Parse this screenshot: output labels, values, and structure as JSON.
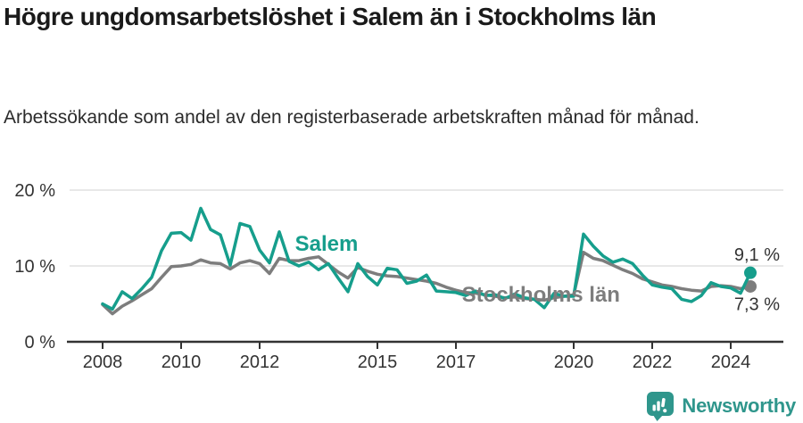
{
  "header": {
    "title": "Högre ungdomsarbetslöshet i Salem än i Stockholms län",
    "subtitle": "Arbetssökande som andel av den registerbaserade arbetskraften månad för månad."
  },
  "chart_data": {
    "type": "line",
    "title": "Högre ungdomsarbetslöshet i Salem än i Stockholms län",
    "xlabel": "",
    "ylabel": "Arbetssökande som andel av den registerbaserade arbetskraften (%)",
    "grid": "horizontal",
    "legend_position": "inline-annotations",
    "x_range": [
      2007.1,
      2025.4
    ],
    "ylim": [
      0,
      21
    ],
    "y_ticks": [
      {
        "value": 0,
        "label": "0 %"
      },
      {
        "value": 10,
        "label": "10 %"
      },
      {
        "value": 20,
        "label": "20 %"
      }
    ],
    "x_ticks": [
      {
        "value": 2008,
        "label": "2008"
      },
      {
        "value": 2010,
        "label": "2010"
      },
      {
        "value": 2012,
        "label": "2012"
      },
      {
        "value": 2015,
        "label": "2015"
      },
      {
        "value": 2017,
        "label": "2017"
      },
      {
        "value": 2020,
        "label": "2020"
      },
      {
        "value": 2022,
        "label": "2022"
      },
      {
        "value": 2024,
        "label": "2024"
      }
    ],
    "x": [
      2008.0,
      2008.25,
      2008.5,
      2008.75,
      2009.0,
      2009.25,
      2009.5,
      2009.75,
      2010.0,
      2010.25,
      2010.5,
      2010.75,
      2011.0,
      2011.25,
      2011.5,
      2011.75,
      2012.0,
      2012.25,
      2012.5,
      2012.75,
      2013.0,
      2013.25,
      2013.5,
      2013.75,
      2014.0,
      2014.25,
      2014.5,
      2014.75,
      2015.0,
      2015.25,
      2015.5,
      2015.75,
      2016.0,
      2016.25,
      2016.5,
      2016.75,
      2017.0,
      2017.25,
      2017.5,
      2017.75,
      2018.0,
      2018.25,
      2018.5,
      2018.75,
      2019.0,
      2019.25,
      2019.5,
      2019.75,
      2020.0,
      2020.25,
      2020.5,
      2020.75,
      2021.0,
      2021.25,
      2021.5,
      2021.75,
      2022.0,
      2022.25,
      2022.5,
      2022.75,
      2023.0,
      2023.25,
      2023.5,
      2023.75,
      2024.0,
      2024.25,
      2024.5
    ],
    "series": [
      {
        "name": "Stockholms län",
        "color": "#7d7d7d",
        "end_value_label": "7,3 %",
        "values": [
          4.9,
          3.7,
          4.7,
          5.4,
          6.2,
          7.0,
          8.5,
          9.9,
          10.0,
          10.2,
          10.8,
          10.4,
          10.3,
          9.6,
          10.4,
          10.7,
          10.3,
          9.0,
          11.0,
          10.7,
          10.7,
          11.0,
          11.2,
          10.2,
          9.2,
          8.4,
          9.8,
          9.3,
          8.9,
          8.7,
          8.6,
          8.4,
          8.2,
          8.0,
          7.7,
          7.2,
          6.8,
          6.5,
          6.4,
          6.2,
          6.0,
          5.8,
          5.9,
          5.7,
          5.6,
          5.5,
          5.8,
          6.0,
          6.2,
          11.8,
          11.0,
          10.7,
          10.1,
          9.5,
          9.0,
          8.3,
          7.9,
          7.5,
          7.3,
          7.0,
          6.8,
          6.7,
          7.3,
          7.4,
          7.3,
          7.0,
          7.3
        ]
      },
      {
        "name": "Salem",
        "color": "#169e8c",
        "end_value_label": "9,1 %",
        "values": [
          5.0,
          4.3,
          6.6,
          5.7,
          7.0,
          8.5,
          12.0,
          14.3,
          14.4,
          13.4,
          17.6,
          14.8,
          14.1,
          10.1,
          15.6,
          15.2,
          12.1,
          10.4,
          14.5,
          10.6,
          10.0,
          10.5,
          9.5,
          10.3,
          8.4,
          6.6,
          10.3,
          8.6,
          7.5,
          9.7,
          9.5,
          7.7,
          8.0,
          8.8,
          6.7,
          6.6,
          6.5,
          6.1,
          6.7,
          6.1,
          6.2,
          5.7,
          6.3,
          5.8,
          5.6,
          4.5,
          6.4,
          6.0,
          6.0,
          14.2,
          12.6,
          11.3,
          10.5,
          10.9,
          10.3,
          8.8,
          7.5,
          7.2,
          7.0,
          5.6,
          5.3,
          6.1,
          7.8,
          7.3,
          7.1,
          6.4,
          9.1
        ]
      }
    ],
    "annotations": [
      {
        "text": "Salem",
        "year": 2012.9,
        "value": 12.0,
        "color": "#169e8c",
        "anchor": "start",
        "bold": true,
        "size": 24
      },
      {
        "text": "Stockholms län",
        "year": 2017.15,
        "value": 5.3,
        "color": "#7d7d7d",
        "anchor": "start",
        "bold": true,
        "size": 24
      },
      {
        "text": "9,1 %",
        "year": 2025.25,
        "value": 10.7,
        "color": "#333333",
        "anchor": "end",
        "bold": false,
        "size": 20
      },
      {
        "text": "7,3 %",
        "year": 2025.25,
        "value": 4.2,
        "color": "#333333",
        "anchor": "end",
        "bold": false,
        "size": 20
      }
    ],
    "style": {
      "axis_color": "#333333",
      "grid_color": "#d9d9d9",
      "tick_label_color": "#333333",
      "line_width": 3.5,
      "end_dot_radius": 7
    }
  },
  "footer": {
    "brand": "Newsworthy",
    "logo_color": "#2f968c"
  }
}
